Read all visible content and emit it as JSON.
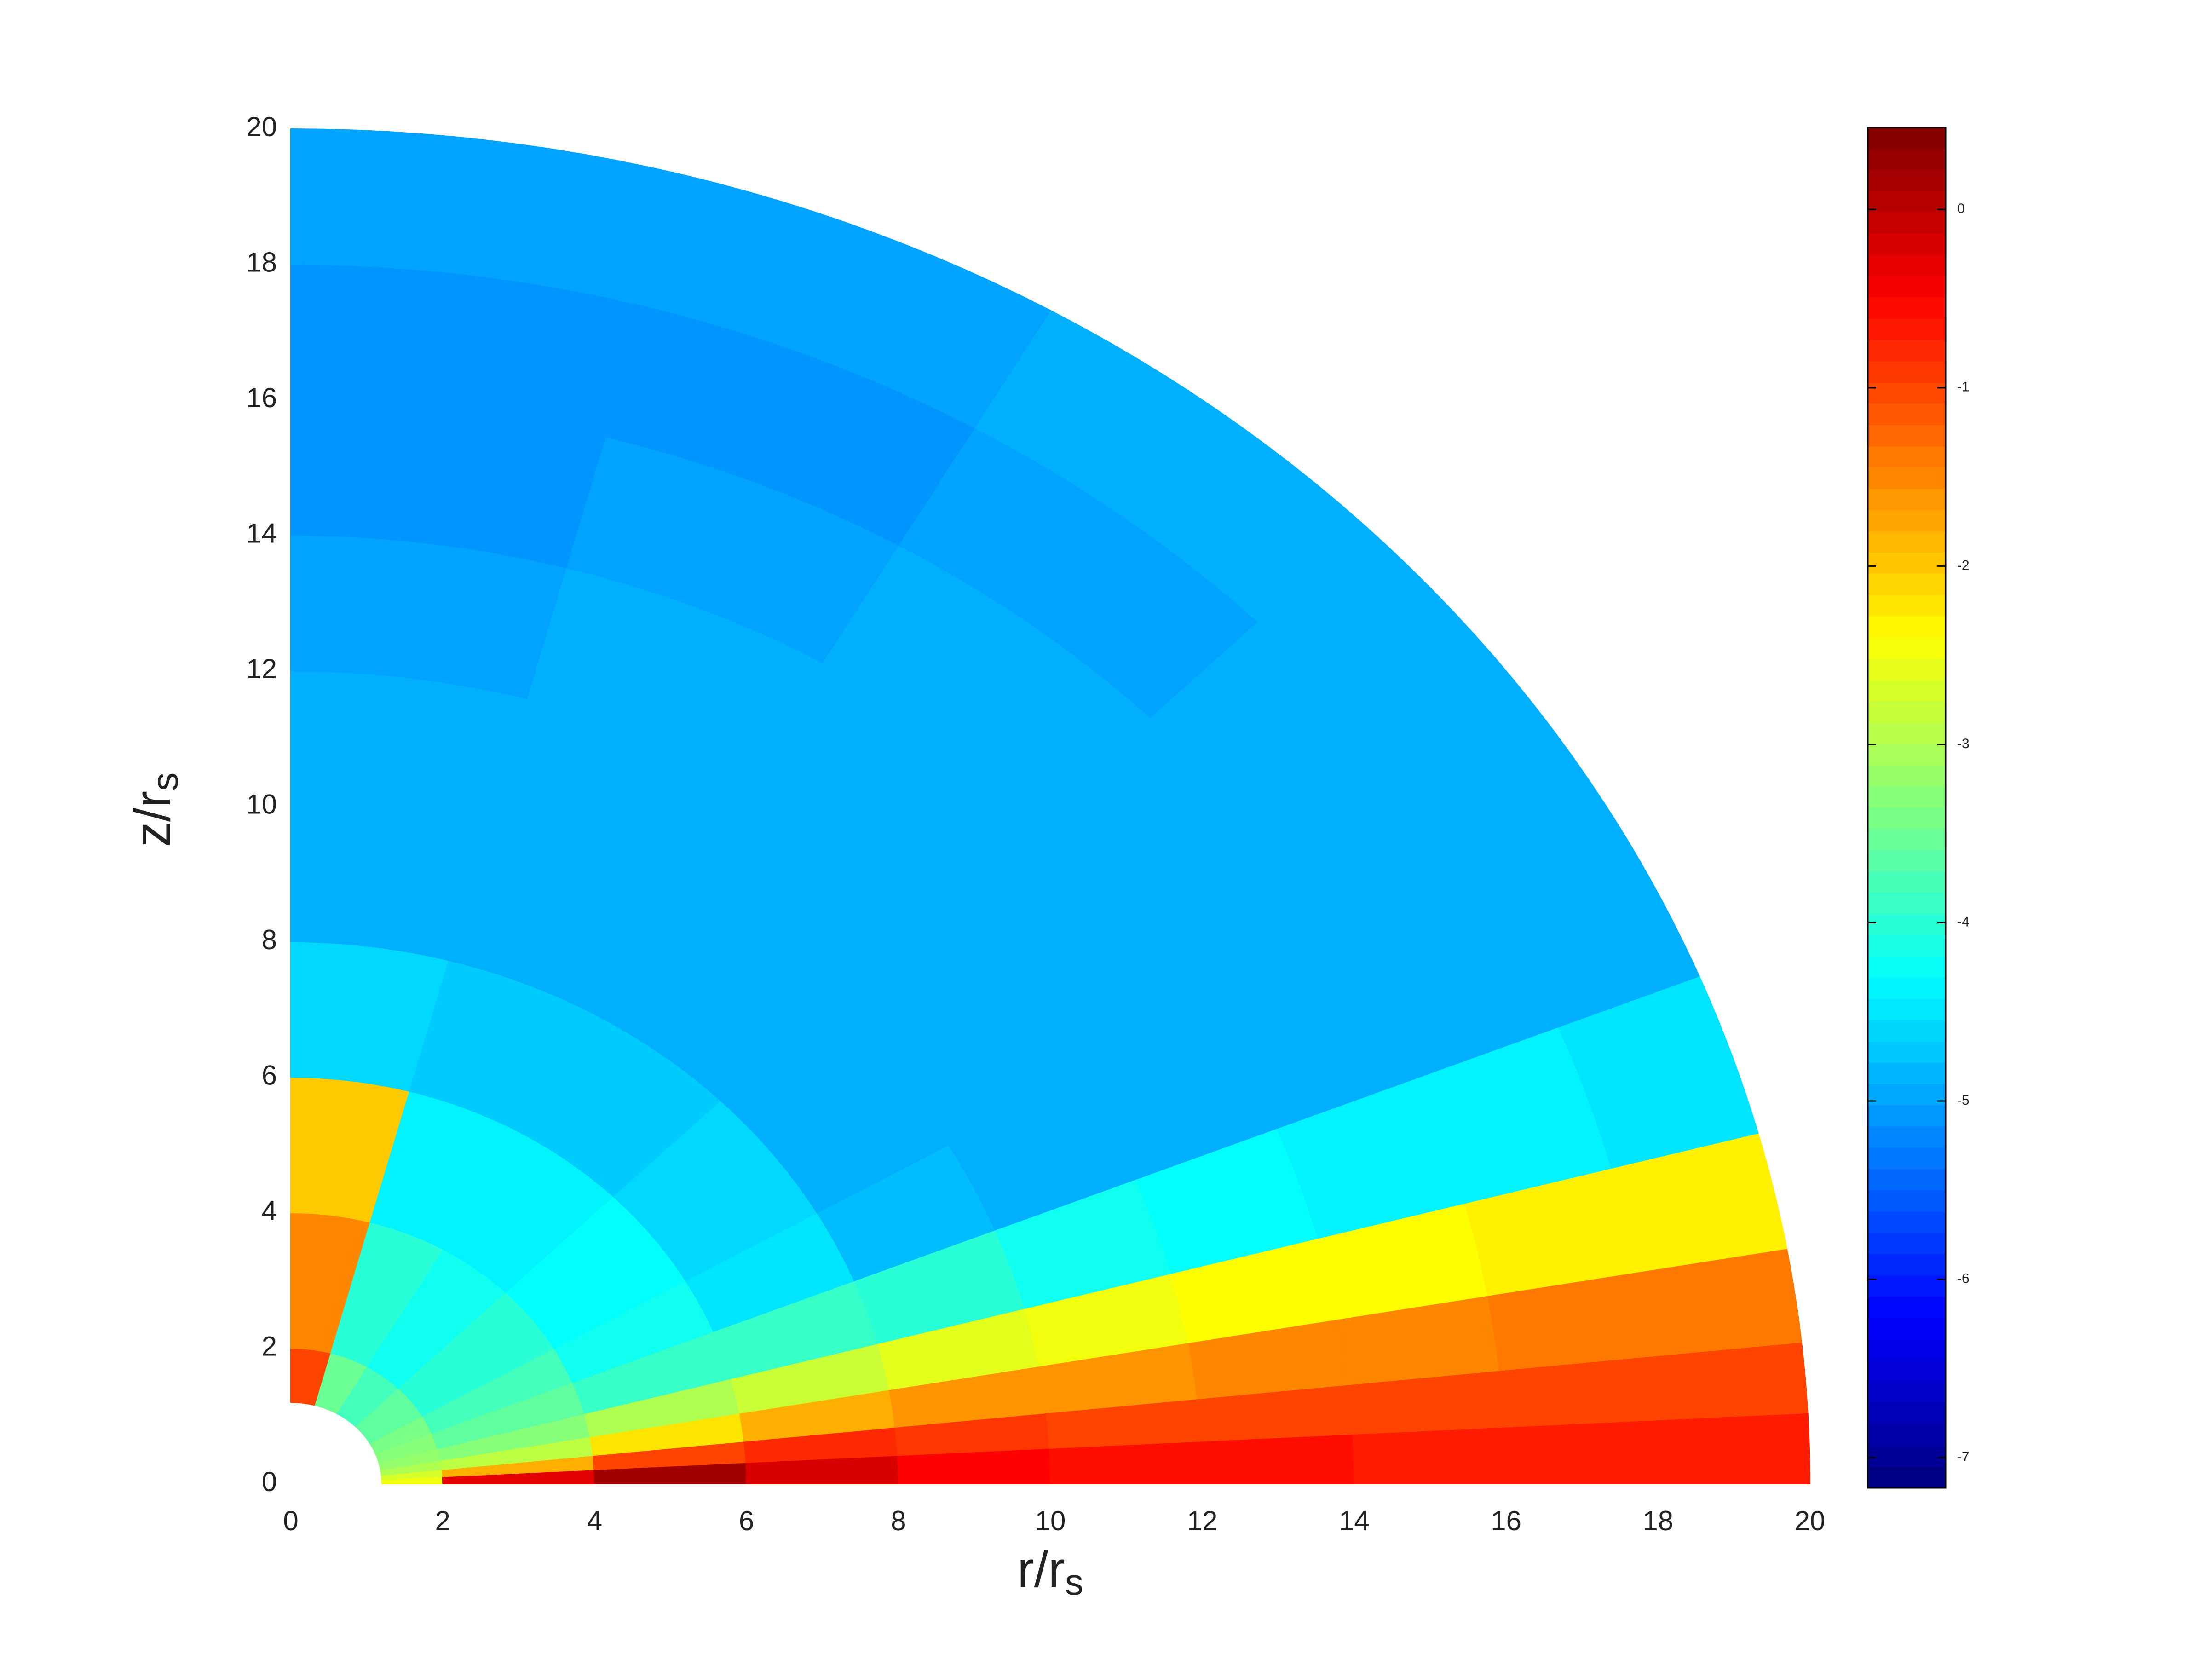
{
  "chart_data": {
    "type": "polar-contour",
    "xlabel": {
      "text": "r/r",
      "subscript": "s"
    },
    "ylabel": {
      "text": "z/r",
      "subscript": "s"
    },
    "xlim": [
      0,
      20
    ],
    "ylim": [
      0,
      20
    ],
    "xticks": [
      0,
      2,
      4,
      6,
      8,
      10,
      12,
      14,
      16,
      18,
      20
    ],
    "yticks": [
      0,
      2,
      4,
      6,
      8,
      10,
      12,
      14,
      16,
      18,
      20
    ],
    "colormap": "jet",
    "r_edges": [
      1.2,
      2,
      4,
      6,
      8,
      10,
      12,
      14,
      16,
      18,
      20
    ],
    "theta_edges": [
      0,
      3,
      6,
      10,
      15,
      22,
      30,
      45,
      60,
      75,
      90
    ],
    "values": [
      [
        -2.5,
        -2.7,
        -3.0,
        -3.2,
        -3.3,
        -3.4,
        -3.6,
        -3.8,
        -3.5,
        -1.0
      ],
      [
        -0.3,
        -1.8,
        -2.9,
        -3.3,
        -3.6,
        -3.8,
        -4.0,
        -4.2,
        -4.0,
        -1.5
      ],
      [
        0.2,
        -1.0,
        -2.2,
        -3.0,
        -3.9,
        -4.2,
        -4.3,
        -4.4,
        -4.4,
        -2.0
      ],
      [
        -0.2,
        -0.8,
        -1.8,
        -2.8,
        -3.9,
        -4.5,
        -4.6,
        -4.7,
        -4.7,
        -4.6
      ],
      [
        -0.5,
        -0.9,
        -1.6,
        -2.6,
        -4.0,
        -4.8,
        -4.9,
        -4.9,
        -4.9,
        -4.9
      ],
      [
        -0.6,
        -1.0,
        -1.6,
        -2.5,
        -4.2,
        -4.9,
        -4.9,
        -4.9,
        -4.9,
        -4.9
      ],
      [
        -0.6,
        -1.0,
        -1.5,
        -2.4,
        -4.3,
        -4.9,
        -4.9,
        -4.9,
        -4.9,
        -5.0
      ],
      [
        -0.7,
        -1.0,
        -1.5,
        -2.4,
        -4.4,
        -4.9,
        -4.9,
        -4.9,
        -5.0,
        -5.1
      ],
      [
        -0.7,
        -1.0,
        -1.4,
        -2.3,
        -4.4,
        -4.9,
        -4.9,
        -5.0,
        -5.1,
        -5.1
      ],
      [
        -0.7,
        -1.0,
        -1.4,
        -2.3,
        -4.5,
        -4.9,
        -4.9,
        -4.9,
        -5.0,
        -5.0
      ]
    ],
    "colorbar": {
      "lim": [
        -7.17,
        0.46
      ],
      "ticks": [
        -7,
        -6,
        -5,
        -4,
        -3,
        -2,
        -1,
        0
      ]
    }
  }
}
